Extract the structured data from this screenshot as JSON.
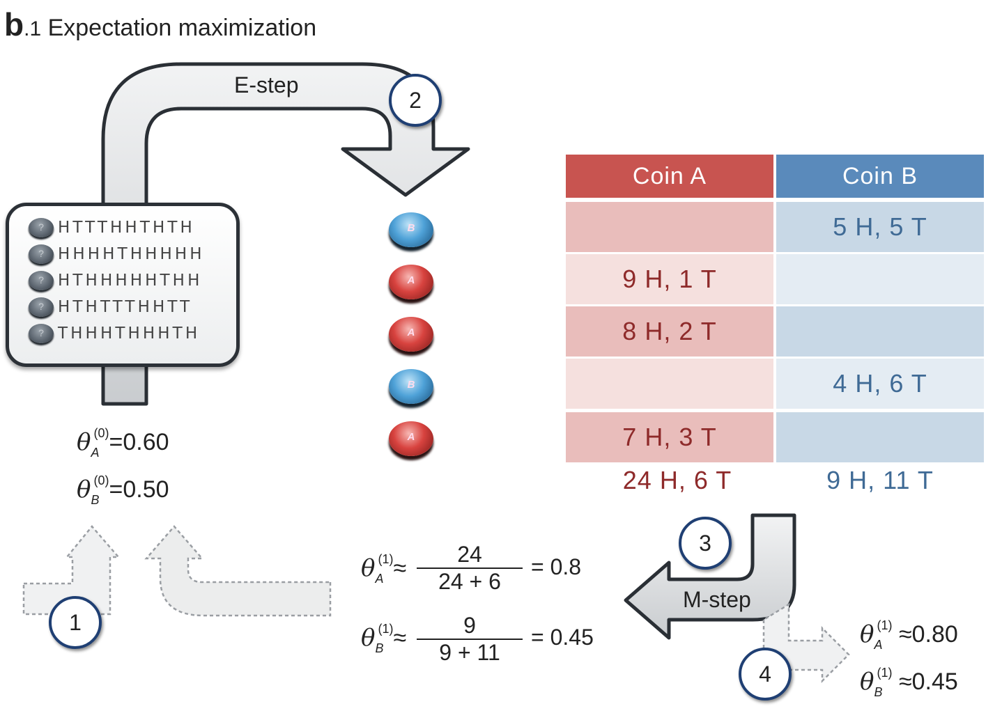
{
  "title": {
    "panel": "b",
    "number": ".1",
    "text": "Expectation maximization"
  },
  "steps": {
    "e_step": "E-step",
    "m_step": "M-step",
    "badges": [
      "1",
      "2",
      "3",
      "4"
    ]
  },
  "sequences": [
    {
      "coin": "?",
      "flips": "HTTTHHTHTH"
    },
    {
      "coin": "?",
      "flips": "HHHHTHHHHH"
    },
    {
      "coin": "?",
      "flips": "HTHHHHHTHH"
    },
    {
      "coin": "?",
      "flips": "HTHTTTHHTT"
    },
    {
      "coin": "?",
      "flips": "THHHTHHHTH"
    }
  ],
  "assigned_coins": [
    "B",
    "A",
    "A",
    "B",
    "A"
  ],
  "table": {
    "headers": [
      "Coin A",
      "Coin B"
    ],
    "rows": [
      {
        "a": "",
        "b": "5 H, 5 T"
      },
      {
        "a": "9 H, 1 T",
        "b": ""
      },
      {
        "a": "8 H, 2 T",
        "b": ""
      },
      {
        "a": "",
        "b": "4 H, 6 T"
      },
      {
        "a": "7 H, 3 T",
        "b": ""
      }
    ],
    "totals": {
      "a": "24 H, 6 T",
      "b": "9 H, 11 T"
    },
    "colors": {
      "red_header": "#c85450",
      "blue_header": "#5a8abb",
      "red_dark": "#e9bdbb",
      "red_light": "#f5e0de",
      "blue_dark": "#c8d8e6",
      "blue_light": "#e4ecf3"
    }
  },
  "initial": {
    "theta_A": {
      "symbol": "θ",
      "sub": "A",
      "sup": "(0)",
      "op": "=",
      "value": "0.60"
    },
    "theta_B": {
      "symbol": "θ",
      "sub": "B",
      "sup": "(0)",
      "op": "=",
      "value": "0.50"
    }
  },
  "update": {
    "theta_A": {
      "symbol": "θ",
      "sub": "A",
      "sup": "(1)",
      "op": "≈",
      "numerator": "24",
      "denominator": "24 + 6",
      "result": "= 0.8"
    },
    "theta_B": {
      "symbol": "θ",
      "sub": "B",
      "sup": "(1)",
      "op": "≈",
      "numerator": "9",
      "denominator": "9 + 11",
      "result": "= 0.45"
    }
  },
  "final": {
    "theta_A": {
      "symbol": "θ",
      "sub": "A",
      "sup": "(1)",
      "op": "≈",
      "value": "0.80"
    },
    "theta_B": {
      "symbol": "θ",
      "sub": "B",
      "sup": "(1)",
      "op": "≈",
      "value": "0.45"
    }
  }
}
